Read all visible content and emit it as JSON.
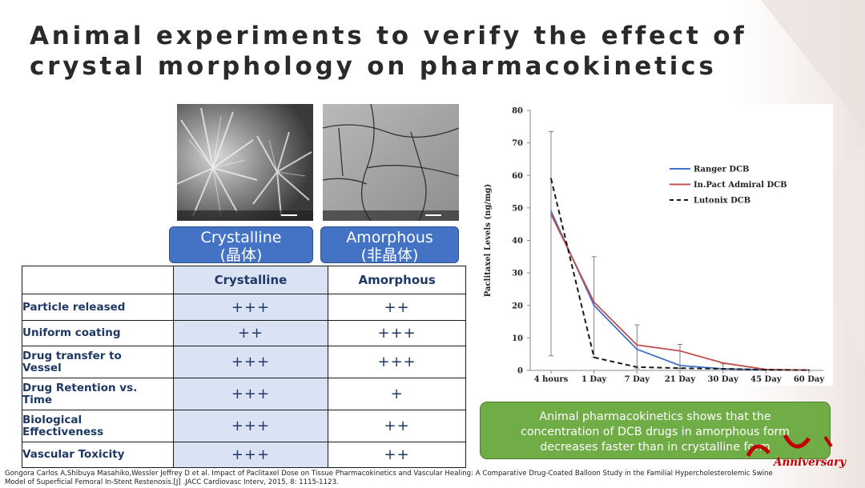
{
  "slide": {
    "title_line1": "Animal experiments to verify the effect of",
    "title_line2": "crystal morphology on pharmacokinetics"
  },
  "images": {
    "crystalline_label_line1": "Crystalline",
    "crystalline_label_line2": "(晶体)",
    "amorphous_label_line1": "Amorphous",
    "amorphous_label_line2": "(非晶体)"
  },
  "table": {
    "headers": [
      "",
      "Crystalline",
      "Amorphous"
    ],
    "rows": [
      {
        "label_line1": "Particle released",
        "label_line2": "",
        "crystalline": "+++",
        "amorphous": "++"
      },
      {
        "label_line1": "Uniform coating",
        "label_line2": "",
        "crystalline": "++",
        "amorphous": "+++"
      },
      {
        "label_line1": "Drug transfer to",
        "label_line2": "Vessel",
        "crystalline": "+++",
        "amorphous": "+++"
      },
      {
        "label_line1": "Drug Retention vs.",
        "label_line2": "Time",
        "crystalline": "+++",
        "amorphous": "+"
      },
      {
        "label_line1": "Biological",
        "label_line2": "Effectiveness",
        "crystalline": "+++",
        "amorphous": "++"
      },
      {
        "label_line1": "Vascular Toxicity",
        "label_line2": "",
        "crystalline": "+++",
        "amorphous": "++"
      }
    ]
  },
  "chart_data": {
    "type": "line",
    "title": "",
    "xlabel": "",
    "ylabel": "Paclitaxel Levels (ng/mg)",
    "categories": [
      "4 hours",
      "1 Day",
      "7 Day",
      "21 Day",
      "30 Day",
      "45 Day",
      "60 Day"
    ],
    "ylim": [
      0,
      80
    ],
    "yticks": [
      0,
      10,
      20,
      30,
      40,
      50,
      60,
      70,
      80
    ],
    "grid": false,
    "legend_position": "top-right",
    "series": [
      {
        "name": "Ranger DCB",
        "color": "#4472c4",
        "dash": false,
        "values": [
          49,
          20,
          6.5,
          1.5,
          0.5,
          0.2,
          0.1
        ]
      },
      {
        "name": "In.Pact Admiral DCB",
        "color": "#c0504d",
        "dash": false,
        "values": [
          48,
          21,
          7.8,
          6,
          2.3,
          0.3,
          0.1
        ]
      },
      {
        "name": "Lutonix DCB",
        "color": "#1a1a1a",
        "dash": true,
        "values": [
          59,
          4,
          1,
          0.7,
          0.5,
          0.2,
          0.1
        ]
      }
    ],
    "error_bars": [
      {
        "category": "4 hours",
        "low": 4.5,
        "high": 73.5
      },
      {
        "category": "1 Day",
        "low": 4,
        "high": 35
      },
      {
        "category": "7 Day",
        "low": 0.5,
        "high": 14
      },
      {
        "category": "21 Day",
        "low": 0.5,
        "high": 8
      },
      {
        "category": "30 Day",
        "low": 0,
        "high": 2
      }
    ]
  },
  "callout": {
    "line1": "Animal pharmacokinetics shows that the",
    "line2": "concentration of DCB drugs in amorphous form",
    "line3": "decreases faster than in crystalline form"
  },
  "logo": {
    "text": "Anniversary",
    "color": "#c00000"
  },
  "reference": {
    "line1": "Gongora Carlos A,Shibuya Masahiko,Wessler Jeffrey D et al. Impact of Paclitaxel Dose on Tissue Pharmacokinetics and Vascular Healing: A Comparative Drug-Coated Balloon Study in the Familial Hypercholesterolemic Swine",
    "line2": "Model of Superficial Femoral In-Stent Restenosis.[J] .JACC Cardiovasc Interv, 2015, 8: 1115-1123."
  }
}
